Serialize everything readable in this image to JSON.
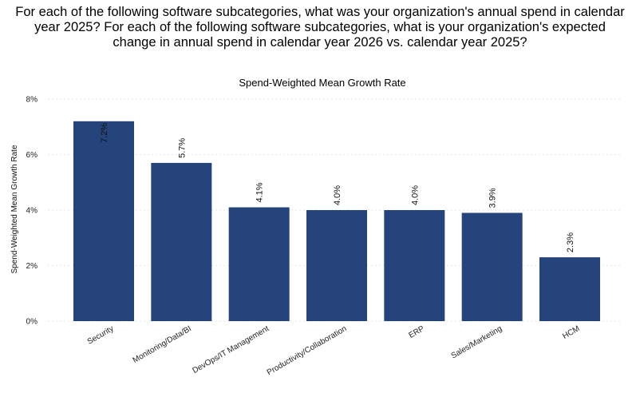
{
  "question": {
    "line1": "For each of the following software subcategories, what was your organization's annual spend in calendar",
    "line2": "year 2025? For each of the following software subcategories, what is your organization's expected",
    "line3": "change in annual spend in calendar year 2026 vs. calendar year 2025?"
  },
  "chart_data": {
    "type": "bar",
    "title": "Spend-Weighted Mean Growth Rate",
    "xlabel": "",
    "ylabel": "Spend-Weighted Mean Growth Rate",
    "categories": [
      "Security",
      "Monitoring/Data/BI",
      "DevOps/IT Management",
      "Productivity/Collaboration",
      "ERP",
      "Sales/Marketing",
      "HCM"
    ],
    "values": [
      7.2,
      5.7,
      4.1,
      4.0,
      4.0,
      3.9,
      2.3
    ],
    "data_labels": [
      "7.2%",
      "5.7%",
      "4.1%",
      "4.0%",
      "4.0%",
      "3.9%",
      "2.3%"
    ],
    "value_unit": "%",
    "ylim": [
      0,
      8
    ],
    "yticks": [
      0,
      2,
      4,
      6,
      8
    ],
    "ytick_labels": [
      "0%",
      "2%",
      "4%",
      "6%",
      "8%"
    ],
    "grid": true,
    "legend": "none",
    "bar_color": "#26447c",
    "grid_color": "#e6e6e6"
  }
}
